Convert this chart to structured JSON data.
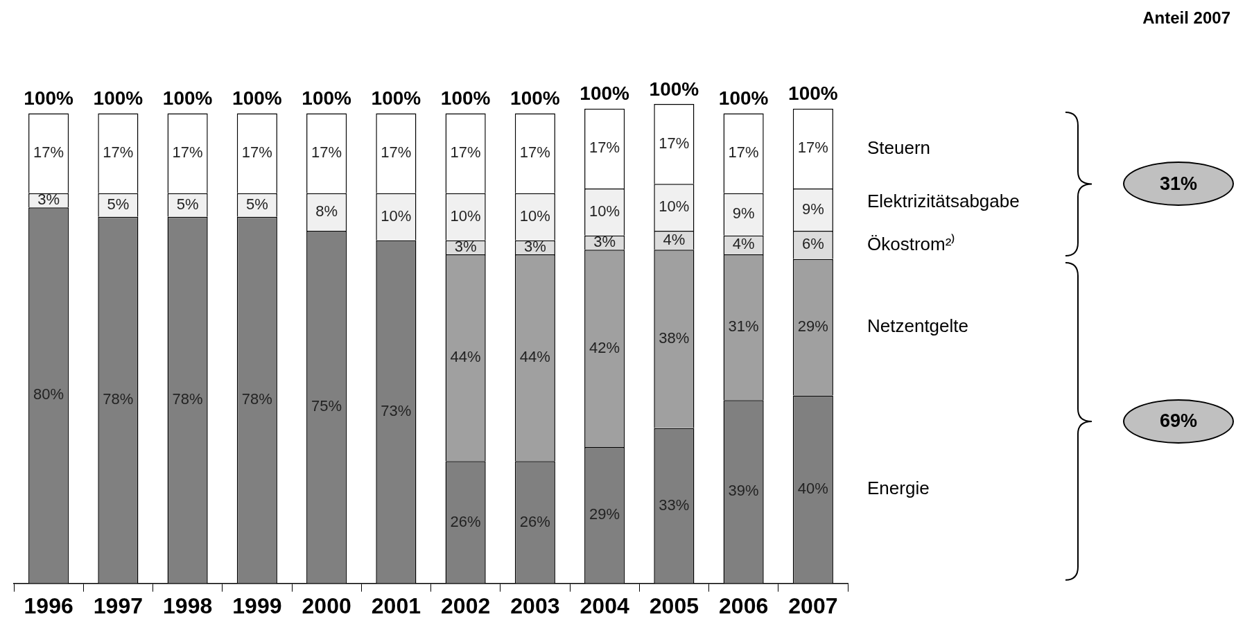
{
  "chart_data": {
    "type": "bar",
    "stacked": true,
    "categories": [
      "1996",
      "1997",
      "1998",
      "1999",
      "2000",
      "2001",
      "2002",
      "2003",
      "2004",
      "2005",
      "2006",
      "2007"
    ],
    "series": [
      {
        "name": "Energie",
        "color": "#808080",
        "values": [
          80,
          78,
          78,
          78,
          75,
          73,
          26,
          26,
          29,
          33,
          39,
          40
        ],
        "value_labels": [
          "80%",
          "78%",
          "78%",
          "78%",
          "75%",
          "73%",
          "26%",
          "26%",
          "29%",
          "33%",
          "39%",
          "40%"
        ]
      },
      {
        "name": "Netzentgelte",
        "color": "#a0a0a0",
        "values": [
          null,
          null,
          null,
          null,
          null,
          null,
          44,
          44,
          42,
          38,
          31,
          29
        ],
        "value_labels": [
          null,
          null,
          null,
          null,
          null,
          null,
          "44%",
          "44%",
          "42%",
          "38%",
          "31%",
          "29%"
        ]
      },
      {
        "name": "Ökostrom²⁾",
        "color": "#dcdcdc",
        "values": [
          null,
          null,
          null,
          null,
          null,
          null,
          3,
          3,
          3,
          4,
          4,
          6
        ],
        "value_labels": [
          null,
          null,
          null,
          null,
          null,
          null,
          "3%",
          "3%",
          "3%",
          "4%",
          "4%",
          "6%"
        ]
      },
      {
        "name": "Elektrizitätsabgabe",
        "color": "#f0f0f0",
        "values": [
          3,
          5,
          5,
          5,
          8,
          10,
          10,
          10,
          10,
          10,
          9,
          9
        ],
        "value_labels": [
          "3%",
          "5%",
          "5%",
          "5%",
          "8%",
          "10%",
          "10%",
          "10%",
          "10%",
          "10%",
          "9%",
          "9%"
        ]
      },
      {
        "name": "Steuern",
        "color": "#ffffff",
        "values": [
          17,
          17,
          17,
          17,
          17,
          17,
          17,
          17,
          17,
          17,
          17,
          17
        ],
        "value_labels": [
          "17%",
          "17%",
          "17%",
          "17%",
          "17%",
          "17%",
          "17%",
          "17%",
          "17%",
          "17%",
          "17%",
          "17%"
        ]
      }
    ],
    "totals": [
      "100%",
      "100%",
      "100%",
      "100%",
      "100%",
      "100%",
      "100%",
      "100%",
      "100%",
      "100%",
      "100%",
      "100%"
    ],
    "ylim": [
      0,
      102
    ],
    "tick_labels": "x",
    "grid": false,
    "annotations": [
      "Anteil 2007",
      "31%",
      "69%"
    ]
  }
}
